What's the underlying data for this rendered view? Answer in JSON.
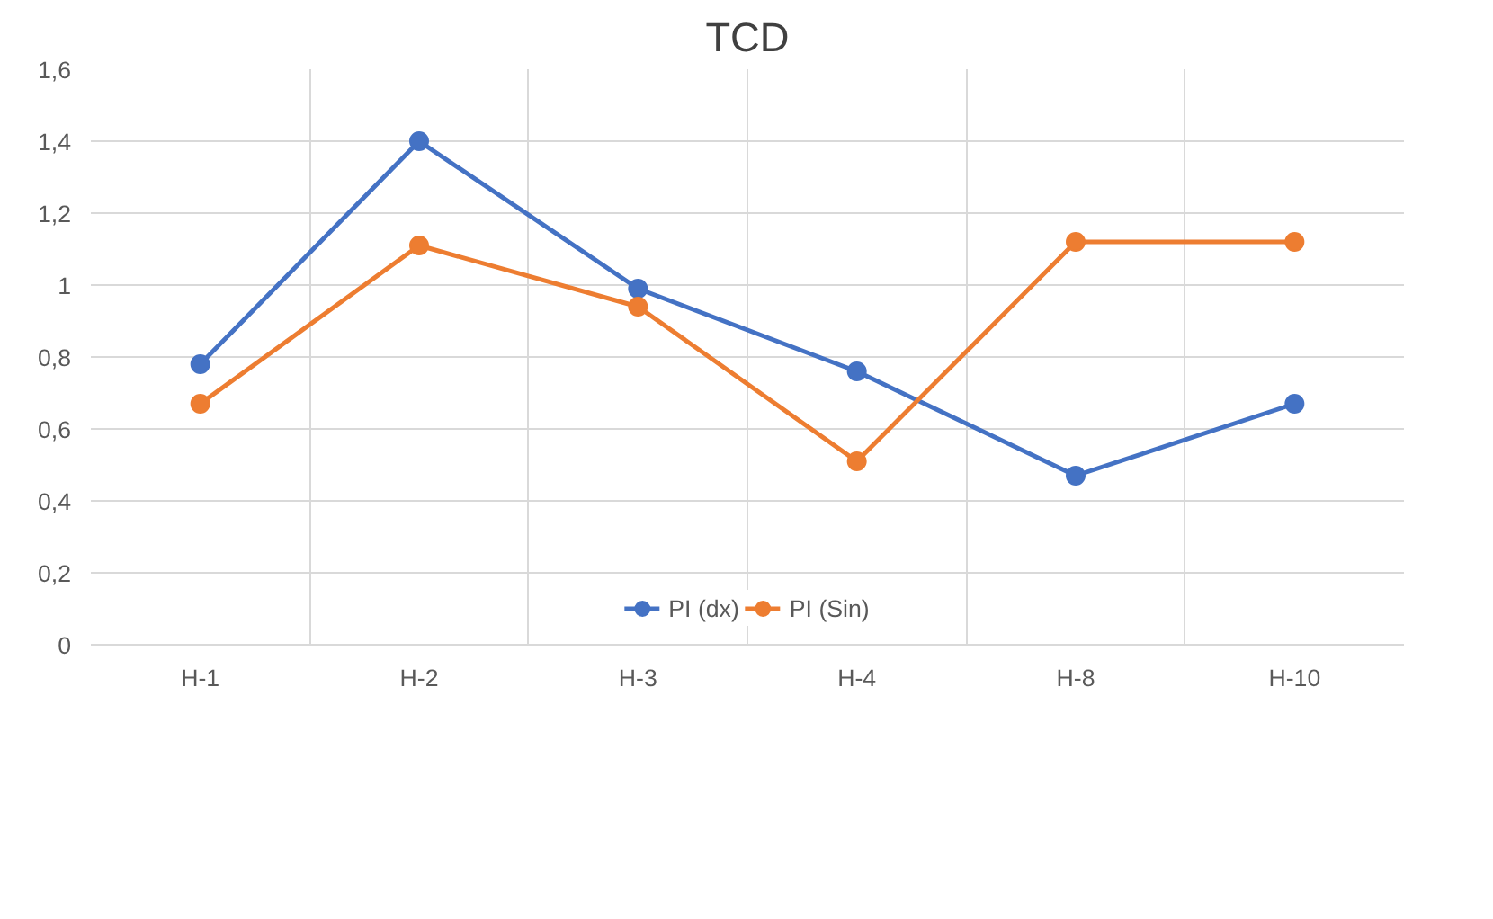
{
  "chart_data": {
    "type": "line",
    "title": "TCD",
    "categories": [
      "H-1",
      "H-2",
      "H-3",
      "H-4",
      "H-8",
      "H-10"
    ],
    "series": [
      {
        "name": "PI (dx)",
        "color": "#4472c4",
        "values": [
          0.78,
          1.4,
          0.99,
          0.76,
          0.47,
          0.67
        ]
      },
      {
        "name": "PI (Sin)",
        "color": "#ed7d31",
        "values": [
          0.67,
          1.11,
          0.94,
          0.51,
          1.12,
          1.12
        ]
      }
    ],
    "ylim": [
      0,
      1.6
    ],
    "yticks": [
      0,
      {
        "value": 0.2,
        "label": "0,2"
      },
      {
        "value": 0.4,
        "label": "0,4"
      },
      {
        "value": 0.6,
        "label": "0,6"
      },
      {
        "value": 0.8,
        "label": "0,8"
      },
      1,
      {
        "value": 1.2,
        "label": "1,2"
      },
      {
        "value": 1.4,
        "label": "1,4"
      },
      {
        "value": 1.6,
        "label": "1,6"
      }
    ],
    "grid": true,
    "legend": "bottom",
    "marker": "circle",
    "line_style": "solid"
  }
}
